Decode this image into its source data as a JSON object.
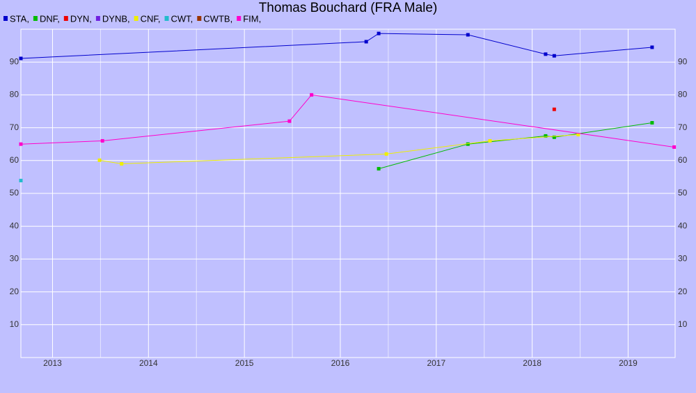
{
  "chart_data": {
    "type": "line",
    "title": "Thomas Bouchard (FRA Male)",
    "xlim": [
      2012.67,
      2019.49
    ],
    "xticks": [
      2013,
      2014,
      2015,
      2016,
      2017,
      2018,
      2019
    ],
    "ylim": [
      0,
      100
    ],
    "yticks": [
      10,
      20,
      30,
      40,
      50,
      60,
      70,
      80,
      90
    ],
    "grid": true,
    "series": [
      {
        "name": "STA,",
        "color": "#0000cc",
        "x": [
          2012.67,
          2016.27,
          2016.4,
          2017.33,
          2018.14,
          2018.23,
          2019.25
        ],
        "values": [
          91.1,
          96.2,
          98.7,
          98.3,
          92.4,
          91.9,
          94.5
        ]
      },
      {
        "name": "DNF,",
        "color": "#00bb00",
        "x": [
          2016.4,
          2017.33,
          2018.14,
          2018.23,
          2019.25
        ],
        "values": [
          57.5,
          65.0,
          67.5,
          67.1,
          71.5
        ]
      },
      {
        "name": "DYN,",
        "color": "#ee0000",
        "x": [
          2018.23
        ],
        "values": [
          75.6
        ]
      },
      {
        "name": "DYNB,",
        "color": "#7020e0",
        "x": [],
        "values": []
      },
      {
        "name": "CNF,",
        "color": "#eeee00",
        "x": [
          2013.49,
          2013.72,
          2016.48,
          2017.56,
          2018.48
        ],
        "values": [
          60.1,
          59.0,
          62.0,
          66.0,
          67.9
        ]
      },
      {
        "name": "CWT,",
        "color": "#22bbcc",
        "x": [
          2012.67
        ],
        "values": [
          53.9
        ]
      },
      {
        "name": "CWTB,",
        "color": "#993300",
        "x": [],
        "values": []
      },
      {
        "name": "FIM,",
        "color": "#ff00cc",
        "x": [
          2012.67,
          2013.52,
          2015.47,
          2015.7,
          2019.48
        ],
        "values": [
          65.0,
          66.0,
          72.0,
          80.0,
          64.1
        ]
      }
    ]
  }
}
